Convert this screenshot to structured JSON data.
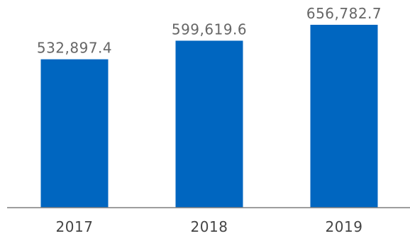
{
  "chart_data": {
    "type": "bar",
    "categories": [
      "2017",
      "2018",
      "2019"
    ],
    "values": [
      532897.4,
      599619.6,
      656782.7
    ],
    "data_labels": [
      "532,897.4",
      "599,619.6",
      "656,782.7"
    ],
    "title": "",
    "xlabel": "",
    "ylabel": "",
    "ylim": [
      0,
      700000
    ],
    "grid": false,
    "legend": "none",
    "colors": {
      "bar": "#0066C0",
      "axis": "#7f7f7f",
      "label_text": "#666666",
      "tick_text": "#444444"
    }
  }
}
